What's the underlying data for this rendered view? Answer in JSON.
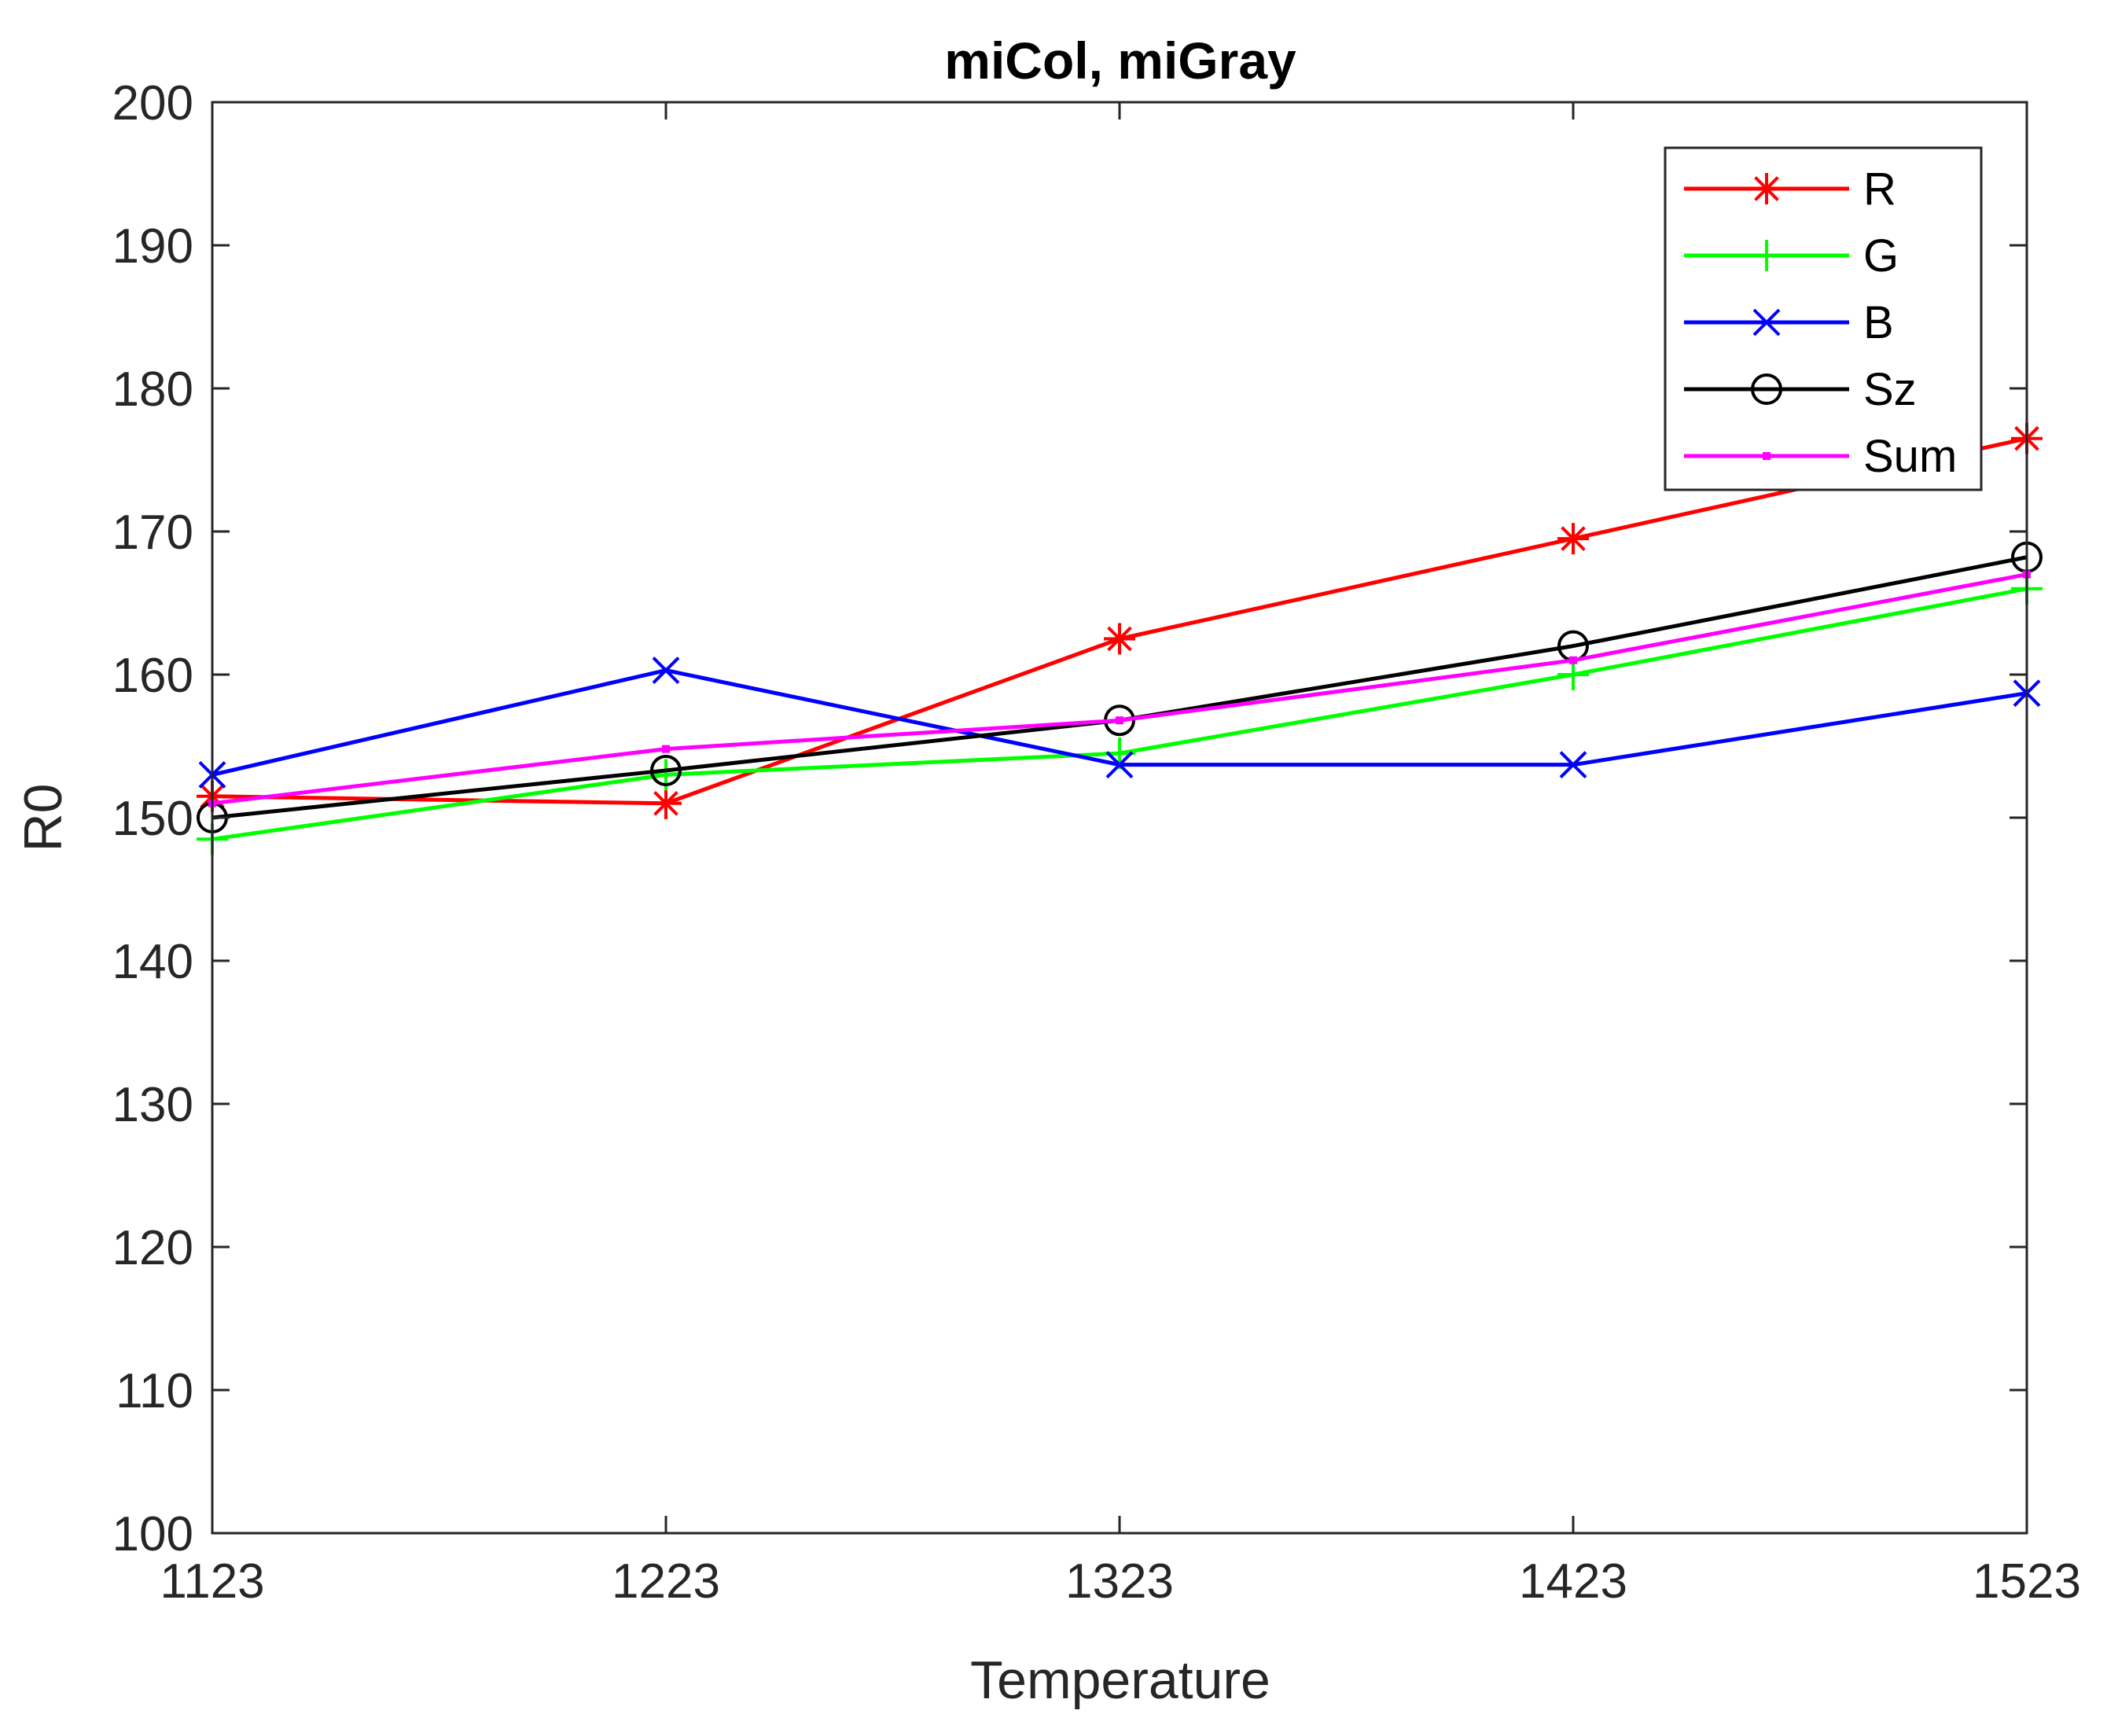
{
  "chart_data": {
    "type": "line",
    "title": "miCol, miGray",
    "xlabel": "Temperature",
    "ylabel": "R0",
    "x": [
      1123,
      1223,
      1323,
      1423,
      1523
    ],
    "xticks": [
      "1123",
      "1223",
      "1323",
      "1423",
      "1523"
    ],
    "yticks": [
      "100",
      "110",
      "120",
      "130",
      "140",
      "150",
      "160",
      "170",
      "180",
      "190",
      "200"
    ],
    "xlim": [
      1123,
      1523
    ],
    "ylim": [
      100,
      200
    ],
    "grid": false,
    "legend_position": "top-right",
    "series": [
      {
        "name": "R",
        "color": "#ff0000",
        "marker": "asterisk",
        "values": [
          151.5,
          151.0,
          162.5,
          169.5,
          176.5
        ]
      },
      {
        "name": "G",
        "color": "#00ff00",
        "marker": "plus",
        "values": [
          148.5,
          153.0,
          154.5,
          160.0,
          166.0
        ]
      },
      {
        "name": "B",
        "color": "#0000ff",
        "marker": "x",
        "values": [
          153.0,
          160.3,
          153.7,
          153.7,
          158.7
        ]
      },
      {
        "name": "Sz",
        "color": "#000000",
        "marker": "circle",
        "values": [
          150.0,
          153.3,
          156.8,
          162.0,
          168.2
        ]
      },
      {
        "name": "Sum",
        "color": "#ff00ff",
        "marker": "point",
        "values": [
          151.0,
          154.8,
          156.8,
          161.0,
          167.0
        ]
      }
    ]
  }
}
